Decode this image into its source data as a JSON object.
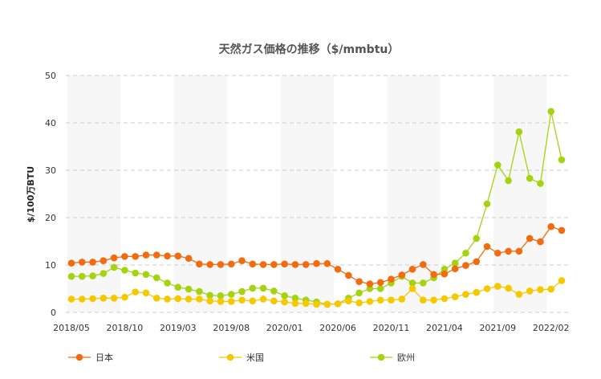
{
  "chart_data": {
    "type": "line",
    "title": "天然ガス価格の推移（$/mmbtu）",
    "xlabel": "",
    "ylabel": "$/100万BTU",
    "ylim": [
      0,
      50
    ],
    "yticks": [
      "0",
      "10",
      "20",
      "30",
      "40",
      "50"
    ],
    "grid": true,
    "legend_position": "bottom",
    "categories": [
      "2018/05",
      "2018/06",
      "2018/07",
      "2018/08",
      "2018/09",
      "2018/10",
      "2018/11",
      "2018/12",
      "2019/01",
      "2019/02",
      "2019/03",
      "2019/04",
      "2019/05",
      "2019/06",
      "2019/07",
      "2019/08",
      "2019/09",
      "2019/10",
      "2019/11",
      "2019/12",
      "2020/01",
      "2020/02",
      "2020/03",
      "2020/04",
      "2020/05",
      "2020/06",
      "2020/07",
      "2020/08",
      "2020/09",
      "2020/10",
      "2020/11",
      "2020/12",
      "2021/01",
      "2021/02",
      "2021/03",
      "2021/04",
      "2021/05",
      "2021/06",
      "2021/07",
      "2021/08",
      "2021/09",
      "2021/10",
      "2021/11",
      "2021/12",
      "2022/01",
      "2022/02",
      "2022/03"
    ],
    "xtick_labels": [
      "2018/05",
      "2018/10",
      "2019/03",
      "2019/08",
      "2020/01",
      "2020/06",
      "2020/11",
      "2021/04",
      "2021/09",
      "2022/02"
    ],
    "series": [
      {
        "name": "日本",
        "color": "#f26b0f",
        "values": [
          10.4,
          10.6,
          10.6,
          10.9,
          11.5,
          11.8,
          11.8,
          12.1,
          12.1,
          11.9,
          11.9,
          11.4,
          10.2,
          10.1,
          10.1,
          10.2,
          10.9,
          10.2,
          10.1,
          10.1,
          10.2,
          10.1,
          10.1,
          10.3,
          10.3,
          9.1,
          7.8,
          6.5,
          6.0,
          6.3,
          7.0,
          7.9,
          9.1,
          10.1,
          8.0,
          8.1,
          9.2,
          9.9,
          10.7,
          13.9,
          12.5,
          12.9,
          12.9,
          15.6,
          14.9,
          18.1,
          17.3
        ]
      },
      {
        "name": "米国",
        "color": "#f5c800",
        "values": [
          2.8,
          2.8,
          2.9,
          3.0,
          3.0,
          3.2,
          4.3,
          4.1,
          3.0,
          2.8,
          2.9,
          2.8,
          2.8,
          2.4,
          2.3,
          2.3,
          2.6,
          2.4,
          2.8,
          2.4,
          2.2,
          1.9,
          1.9,
          1.7,
          1.7,
          1.8,
          2.4,
          2.0,
          2.3,
          2.6,
          2.6,
          2.8,
          5.0,
          2.6,
          2.6,
          2.9,
          3.3,
          3.8,
          4.2,
          5.0,
          5.5,
          5.1,
          3.8,
          4.5,
          4.8,
          4.9,
          6.7
        ]
      },
      {
        "name": "欧州",
        "color": "#a3d40f",
        "values": [
          7.6,
          7.6,
          7.7,
          8.2,
          9.5,
          8.9,
          8.3,
          8.0,
          7.3,
          6.2,
          5.3,
          4.9,
          4.4,
          3.6,
          3.5,
          3.8,
          4.4,
          5.1,
          5.1,
          4.5,
          3.5,
          3.0,
          2.6,
          2.2,
          1.7,
          1.8,
          3.0,
          4.1,
          5.0,
          5.0,
          6.2,
          7.6,
          6.2,
          6.2,
          7.3,
          9.1,
          10.4,
          12.5,
          15.6,
          22.9,
          31.1,
          27.8,
          38.1,
          28.3,
          27.2,
          42.4,
          32.2
        ]
      }
    ]
  }
}
